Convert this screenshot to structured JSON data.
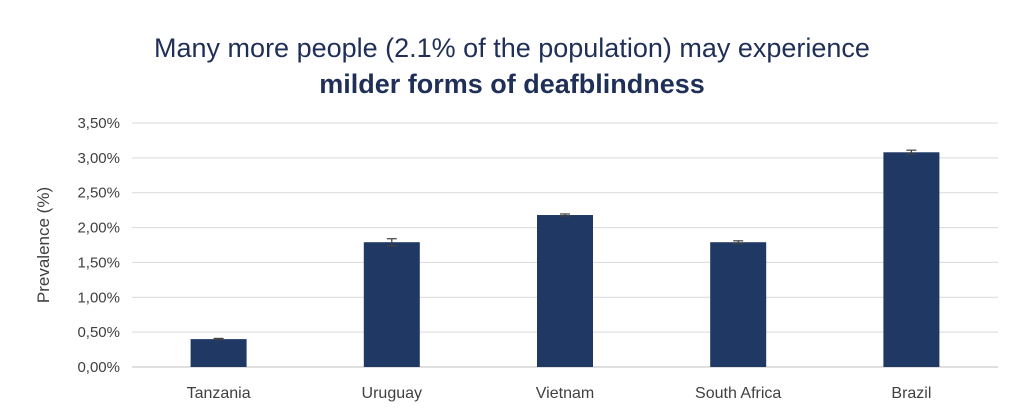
{
  "chart_data": {
    "type": "bar",
    "title_line1": "Many more people (2.1% of the population) may experience",
    "title_line2": "milder forms of deafblindness",
    "ylabel": "Prevalence (%)",
    "xlabel": "",
    "categories": [
      "Tanzania",
      "Uruguay",
      "Vietnam",
      "South Africa",
      "Brazil"
    ],
    "values": [
      0.4,
      1.79,
      2.18,
      1.79,
      3.08
    ],
    "error_bars": [
      0.01,
      0.05,
      0.015,
      0.02,
      0.03
    ],
    "ylim": [
      0,
      3.5
    ],
    "yticks": [
      0,
      0.5,
      1.0,
      1.5,
      2.0,
      2.5,
      3.0,
      3.5
    ],
    "ytick_labels": [
      "0,00%",
      "0,50%",
      "1,00%",
      "1,50%",
      "2,00%",
      "2,50%",
      "3,00%",
      "3,50%"
    ],
    "grid": true,
    "bar_color": "#203864",
    "grid_color": "#d9d9d9",
    "title_color": "#1f2f57"
  }
}
